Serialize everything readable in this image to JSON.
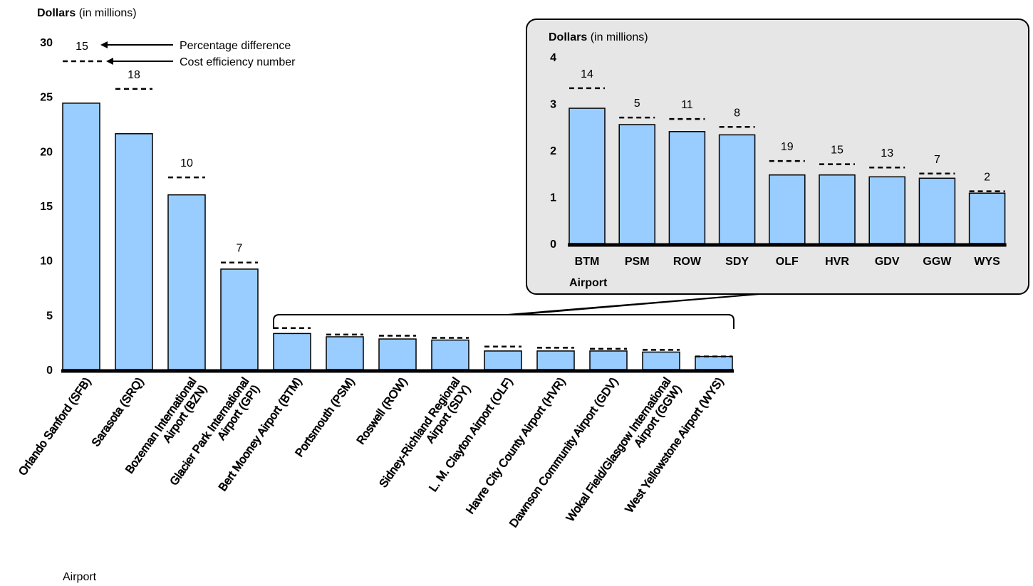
{
  "chart_data": [
    {
      "type": "bar",
      "ylabel": "Dollars",
      "ylabel_suffix": "(in millions)",
      "xlabel": "Airport",
      "ylim": [
        0,
        30
      ],
      "yticks": [
        "0",
        "5",
        "10",
        "15",
        "20",
        "25",
        "30"
      ],
      "categories": [
        "Orlando Sanford (SFB)",
        "Sarasota (SRQ)",
        "Bozeman International Airport (BZN)",
        "Glacier Park International Airport (GPI)",
        "Bert Mooney Airport (BTM)",
        "Portsmouth (PSM)",
        "Roswell (ROW)",
        "Sidney-Richland Regional Airport (SDY)",
        "L. M. Clayton Airport (OLF)",
        "Havre City County Airport (HVR)",
        "Dawnson Community Airport (GDV)",
        "Wokal Field/Glasgow International Airport (GGW)",
        "West Yellowstone Airport (WYS)"
      ],
      "label_lines": [
        [
          "Orlando Sanford (SFB)"
        ],
        [
          "Sarasota (SRQ)"
        ],
        [
          "Bozeman International",
          "Airport (BZN)"
        ],
        [
          "Glacier Park International",
          "Airport (GPI)"
        ],
        [
          "Bert Mooney Airport (BTM)"
        ],
        [
          "Portsmouth (PSM)"
        ],
        [
          "Roswell (ROW)"
        ],
        [
          "Sidney-Richland Regional",
          "Airport (SDY)"
        ],
        [
          "L. M. Clayton Airport (OLF)"
        ],
        [
          "Havre City County Airport (HVR)"
        ],
        [
          "Dawnson Community Airport (GDV)"
        ],
        [
          "Wokal Field/Glasgow International",
          "Airport (GGW)"
        ],
        [
          "West Yellowstone Airport (WYS)"
        ]
      ],
      "values": [
        24.4,
        21.6,
        16.0,
        9.2,
        3.3,
        3.0,
        2.8,
        2.7,
        1.7,
        1.7,
        1.7,
        1.6,
        1.2
      ],
      "cost_efficiency": [
        null,
        25.7,
        17.6,
        9.8,
        3.8,
        3.2,
        3.1,
        2.9,
        2.1,
        2.0,
        1.9,
        1.8,
        1.2
      ],
      "percentage_difference": [
        null,
        "18",
        "10",
        "7",
        null,
        null,
        null,
        null,
        null,
        null,
        null,
        null,
        null
      ],
      "legend": {
        "percentage_label": "Percentage difference",
        "cost_label": "Cost efficiency number",
        "sample_value": "15"
      },
      "legend_position": "top-left"
    },
    {
      "type": "bar",
      "inset": true,
      "ylabel": "Dollars",
      "ylabel_suffix": "(in millions)",
      "xlabel": "Airport",
      "ylim": [
        0,
        4
      ],
      "yticks": [
        "0",
        "1",
        "2",
        "3",
        "4"
      ],
      "categories": [
        "BTM",
        "PSM",
        "ROW",
        "SDY",
        "OLF",
        "HVR",
        "GDV",
        "GGW",
        "WYS"
      ],
      "values": [
        2.9,
        2.55,
        2.4,
        2.33,
        1.47,
        1.47,
        1.43,
        1.4,
        1.08
      ],
      "cost_efficiency": [
        3.33,
        2.7,
        2.67,
        2.5,
        1.77,
        1.7,
        1.63,
        1.5,
        1.12
      ],
      "percentage_difference": [
        "14",
        "5",
        "11",
        "8",
        "19",
        "15",
        "13",
        "7",
        "2"
      ]
    }
  ],
  "colors": {
    "bar": "#99ccff",
    "bar_stroke": "#000000",
    "inset_bg": "#e6e6e6"
  }
}
